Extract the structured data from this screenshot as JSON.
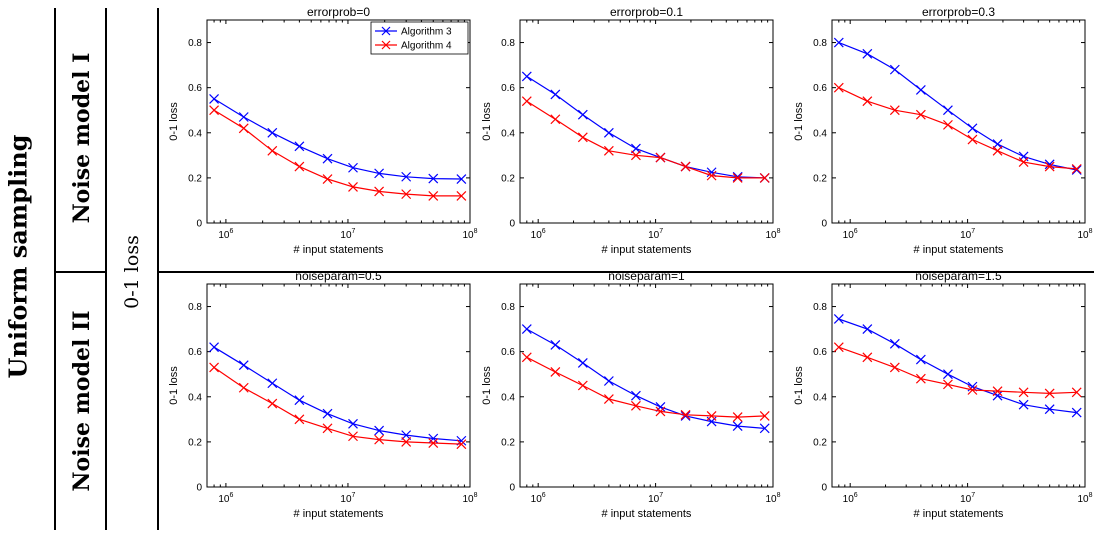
{
  "labels": {
    "sampling": "Uniform sampling",
    "loss": "0-1 loss",
    "row1": "Noise model I",
    "row2": "Noise model II"
  },
  "colors": {
    "algorithm3": "#0000ff",
    "algorithm4": "#ff0000"
  },
  "legend": {
    "position": "top-right",
    "entries": [
      "Algorithm 3",
      "Algorithm 4"
    ]
  },
  "chart_data": [
    {
      "type": "line",
      "title": "errorprob=0",
      "xlabel": "# input statements",
      "ylabel": "0-1 loss",
      "xscale": "log",
      "xlim": [
        700000,
        100000000
      ],
      "ylim": [
        0,
        0.9
      ],
      "yticks": [
        0,
        0.2,
        0.4,
        0.6,
        0.8
      ],
      "xticks": [
        "10^6",
        "10^7",
        "10^8"
      ],
      "x": [
        800000,
        1400000,
        2400000,
        4000000,
        6800000,
        11000000,
        18000000,
        30000000,
        50000000,
        85000000
      ],
      "series": [
        {
          "name": "Algorithm 3",
          "values": [
            0.55,
            0.47,
            0.4,
            0.34,
            0.285,
            0.245,
            0.22,
            0.205,
            0.197,
            0.195
          ]
        },
        {
          "name": "Algorithm 4",
          "values": [
            0.5,
            0.42,
            0.32,
            0.25,
            0.195,
            0.16,
            0.14,
            0.128,
            0.12,
            0.12
          ]
        }
      ]
    },
    {
      "type": "line",
      "title": "errorprob=0.1",
      "xlabel": "# input statements",
      "ylabel": "0-1 loss",
      "xscale": "log",
      "xlim": [
        700000,
        100000000
      ],
      "ylim": [
        0,
        0.9
      ],
      "yticks": [
        0,
        0.2,
        0.4,
        0.6,
        0.8
      ],
      "xticks": [
        "10^6",
        "10^7",
        "10^8"
      ],
      "x": [
        800000,
        1400000,
        2400000,
        4000000,
        6800000,
        11000000,
        18000000,
        30000000,
        50000000,
        85000000
      ],
      "series": [
        {
          "name": "Algorithm 3",
          "values": [
            0.65,
            0.57,
            0.48,
            0.4,
            0.33,
            0.29,
            0.25,
            0.225,
            0.205,
            0.2
          ]
        },
        {
          "name": "Algorithm 4",
          "values": [
            0.54,
            0.46,
            0.38,
            0.32,
            0.3,
            0.29,
            0.25,
            0.21,
            0.2,
            0.2
          ]
        }
      ]
    },
    {
      "type": "line",
      "title": "errorprob=0.3",
      "xlabel": "# input statements",
      "ylabel": "0-1 loss",
      "xscale": "log",
      "xlim": [
        700000,
        100000000
      ],
      "ylim": [
        0,
        0.9
      ],
      "yticks": [
        0,
        0.2,
        0.4,
        0.6,
        0.8
      ],
      "xticks": [
        "10^6",
        "10^7",
        "10^8"
      ],
      "x": [
        800000,
        1400000,
        2400000,
        4000000,
        6800000,
        11000000,
        18000000,
        30000000,
        50000000,
        85000000
      ],
      "series": [
        {
          "name": "Algorithm 3",
          "values": [
            0.8,
            0.75,
            0.68,
            0.59,
            0.5,
            0.42,
            0.35,
            0.295,
            0.26,
            0.235
          ]
        },
        {
          "name": "Algorithm 4",
          "values": [
            0.6,
            0.54,
            0.5,
            0.48,
            0.435,
            0.37,
            0.32,
            0.27,
            0.25,
            0.24
          ]
        }
      ]
    },
    {
      "type": "line",
      "title": "noiseparam=0.5",
      "xlabel": "# input statements",
      "ylabel": "0-1 loss",
      "xscale": "log",
      "xlim": [
        700000,
        100000000
      ],
      "ylim": [
        0,
        0.9
      ],
      "yticks": [
        0,
        0.2,
        0.4,
        0.6,
        0.8
      ],
      "xticks": [
        "10^6",
        "10^7",
        "10^8"
      ],
      "x": [
        800000,
        1400000,
        2400000,
        4000000,
        6800000,
        11000000,
        18000000,
        30000000,
        50000000,
        85000000
      ],
      "series": [
        {
          "name": "Algorithm 3",
          "values": [
            0.62,
            0.54,
            0.46,
            0.385,
            0.325,
            0.28,
            0.25,
            0.23,
            0.215,
            0.205
          ]
        },
        {
          "name": "Algorithm 4",
          "values": [
            0.53,
            0.44,
            0.37,
            0.3,
            0.26,
            0.225,
            0.21,
            0.2,
            0.195,
            0.19
          ]
        }
      ]
    },
    {
      "type": "line",
      "title": "noiseparam=1",
      "xlabel": "# input statements",
      "ylabel": "0-1 loss",
      "xscale": "log",
      "xlim": [
        700000,
        100000000
      ],
      "ylim": [
        0,
        0.9
      ],
      "yticks": [
        0,
        0.2,
        0.4,
        0.6,
        0.8
      ],
      "xticks": [
        "10^6",
        "10^7",
        "10^8"
      ],
      "x": [
        800000,
        1400000,
        2400000,
        4000000,
        6800000,
        11000000,
        18000000,
        30000000,
        50000000,
        85000000
      ],
      "series": [
        {
          "name": "Algorithm 3",
          "values": [
            0.7,
            0.63,
            0.55,
            0.47,
            0.405,
            0.355,
            0.315,
            0.29,
            0.27,
            0.26
          ]
        },
        {
          "name": "Algorithm 4",
          "values": [
            0.575,
            0.51,
            0.45,
            0.39,
            0.36,
            0.335,
            0.32,
            0.315,
            0.31,
            0.315
          ]
        }
      ]
    },
    {
      "type": "line",
      "title": "noiseparam=1.5",
      "xlabel": "# input statements",
      "ylabel": "0-1 loss",
      "xscale": "log",
      "xlim": [
        700000,
        100000000
      ],
      "ylim": [
        0,
        0.9
      ],
      "yticks": [
        0,
        0.2,
        0.4,
        0.6,
        0.8
      ],
      "xticks": [
        "10^6",
        "10^7",
        "10^8"
      ],
      "x": [
        800000,
        1400000,
        2400000,
        4000000,
        6800000,
        11000000,
        18000000,
        30000000,
        50000000,
        85000000
      ],
      "series": [
        {
          "name": "Algorithm 3",
          "values": [
            0.745,
            0.7,
            0.635,
            0.565,
            0.5,
            0.445,
            0.405,
            0.365,
            0.345,
            0.33
          ]
        },
        {
          "name": "Algorithm 4",
          "values": [
            0.62,
            0.575,
            0.53,
            0.48,
            0.455,
            0.43,
            0.425,
            0.42,
            0.415,
            0.42
          ]
        }
      ]
    }
  ]
}
